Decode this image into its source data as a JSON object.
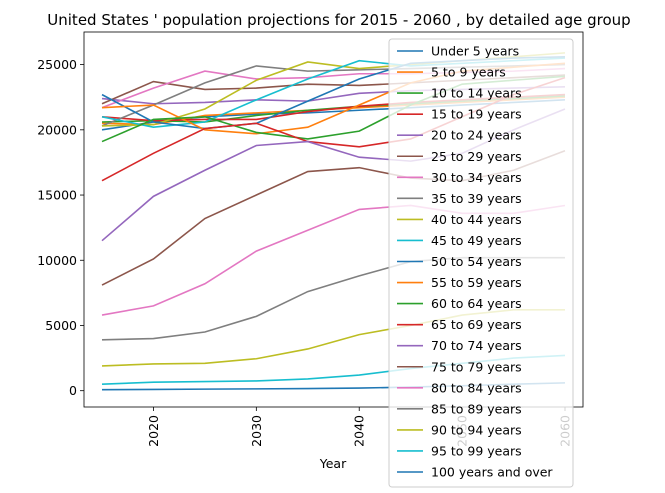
{
  "chart_data": {
    "type": "line",
    "title": "United States ' population projections for 2015 - 2060 , by detailed age group",
    "xlabel": "Year",
    "ylabel": "",
    "x": [
      2015,
      2020,
      2025,
      2030,
      2035,
      2040,
      2045,
      2050,
      2055,
      2060
    ],
    "xticks": [
      2020,
      2030,
      2040,
      2050,
      2060
    ],
    "yticks": [
      0,
      5000,
      10000,
      15000,
      20000,
      25000
    ],
    "xlim": [
      2013.25,
      2061.75
    ],
    "ylim": [
      -1250,
      27500
    ],
    "legend_position": "top-right",
    "series": [
      {
        "name": "Under 5 years",
        "color": "#1f77b4",
        "values": [
          20000,
          20600,
          21000,
          21200,
          21300,
          21500,
          21700,
          21900,
          22100,
          22300
        ]
      },
      {
        "name": "5 to 9 years",
        "color": "#ff7f0e",
        "values": [
          20500,
          20400,
          21100,
          21300,
          21500,
          21700,
          21900,
          22100,
          22300,
          22500
        ]
      },
      {
        "name": "10 to 14 years",
        "color": "#2ca02c",
        "values": [
          20600,
          20700,
          20600,
          21100,
          21500,
          21800,
          22000,
          22200,
          22400,
          22600
        ]
      },
      {
        "name": "15 to 19 years",
        "color": "#d62728",
        "values": [
          21000,
          20700,
          20800,
          20800,
          21400,
          21800,
          22100,
          22300,
          22500,
          22700
        ]
      },
      {
        "name": "20 to 24 years",
        "color": "#9467bd",
        "values": [
          22400,
          22000,
          22100,
          22300,
          22200,
          22800,
          23000,
          23100,
          23200,
          23300
        ]
      },
      {
        "name": "25 to 29 years",
        "color": "#8c564b",
        "values": [
          22000,
          23700,
          23100,
          23200,
          23500,
          23400,
          23600,
          23800,
          24000,
          24200
        ]
      },
      {
        "name": "30 to 34 years",
        "color": "#e377c2",
        "values": [
          21700,
          23200,
          24500,
          23900,
          24000,
          24300,
          24300,
          24400,
          24500,
          24700
        ]
      },
      {
        "name": "35 to 39 years",
        "color": "#7f7f7f",
        "values": [
          20300,
          21900,
          23600,
          24900,
          24500,
          24600,
          24700,
          24800,
          24900,
          25000
        ]
      },
      {
        "name": "40 to 44 years",
        "color": "#bcbd22",
        "values": [
          20300,
          20400,
          21600,
          23800,
          25200,
          24700,
          25000,
          25300,
          25600,
          25900
        ]
      },
      {
        "name": "45 to 49 years",
        "color": "#17becf",
        "values": [
          21000,
          20200,
          20600,
          22300,
          23900,
          25300,
          24900,
          25100,
          25300,
          25500
        ]
      },
      {
        "name": "50 to 54 years",
        "color": "#1f77b4",
        "values": [
          22700,
          20600,
          20100,
          20500,
          22200,
          23900,
          25100,
          25300,
          25500,
          25600
        ]
      },
      {
        "name": "55 to 59 years",
        "color": "#ff7f0e",
        "values": [
          21700,
          21900,
          20000,
          19700,
          20200,
          21900,
          23600,
          24500,
          24800,
          25100
        ]
      },
      {
        "name": "60 to 64 years",
        "color": "#2ca02c",
        "values": [
          19100,
          20800,
          21000,
          19800,
          19300,
          19900,
          21900,
          23500,
          23800,
          24100
        ]
      },
      {
        "name": "65 to 69 years",
        "color": "#d62728",
        "values": [
          16100,
          18200,
          20100,
          20500,
          19100,
          18700,
          19300,
          21000,
          22700,
          24000
        ]
      },
      {
        "name": "70 to 74 years",
        "color": "#9467bd",
        "values": [
          11500,
          14900,
          16900,
          18800,
          19100,
          17900,
          17600,
          18200,
          20000,
          21600
        ]
      },
      {
        "name": "75 to 79 years",
        "color": "#8c564b",
        "values": [
          8100,
          10100,
          13200,
          15000,
          16800,
          17100,
          16300,
          16100,
          16900,
          18400
        ]
      },
      {
        "name": "80 to 84 years",
        "color": "#e377c2",
        "values": [
          5800,
          6500,
          8200,
          10700,
          12300,
          13900,
          14200,
          13600,
          13600,
          14200
        ]
      },
      {
        "name": "85 to 89 years",
        "color": "#7f7f7f",
        "values": [
          3900,
          4000,
          4500,
          5700,
          7600,
          8800,
          9900,
          10200,
          10200,
          10200
        ]
      },
      {
        "name": "90 to 94 years",
        "color": "#bcbd22",
        "values": [
          1900,
          2050,
          2100,
          2450,
          3200,
          4300,
          5000,
          5800,
          6200,
          6200
        ]
      },
      {
        "name": "95 to 99 years",
        "color": "#17becf",
        "values": [
          500,
          650,
          700,
          750,
          900,
          1200,
          1700,
          2100,
          2500,
          2700
        ]
      },
      {
        "name": "100 years and over",
        "color": "#1f77b4",
        "values": [
          80,
          100,
          120,
          140,
          160,
          200,
          280,
          380,
          500,
          600
        ]
      }
    ]
  }
}
